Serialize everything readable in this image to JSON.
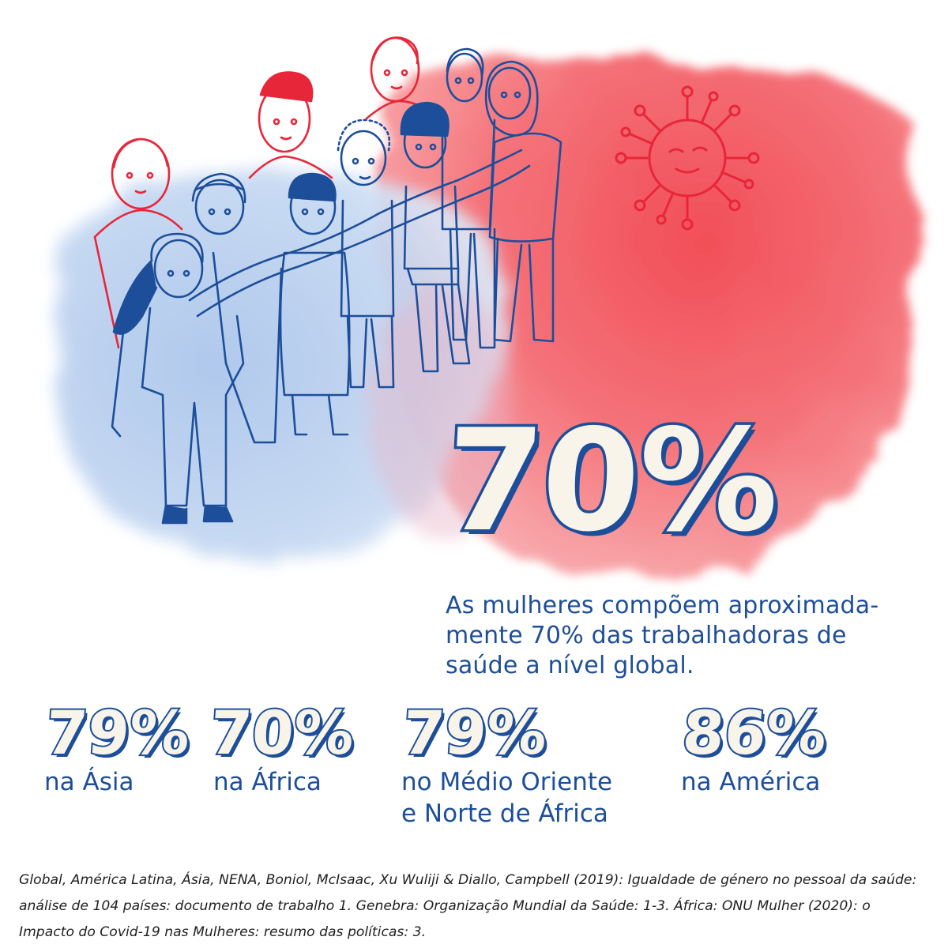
{
  "hero": {
    "value": "70%",
    "text": "As mulheres compõem aproximada-\nmente 70% das trabalhadoras de\nsaúde a nível global."
  },
  "stats": [
    {
      "value": "79%",
      "label": "na Ásia"
    },
    {
      "value": "70%",
      "label": "na África"
    },
    {
      "value": "79%",
      "label": "no Médio Oriente\ne Norte de África"
    },
    {
      "value": "86%",
      "label": "na América"
    }
  ],
  "footer": {
    "source": "Global, América Latina, Ásia, NENA, Boniol, McIsaac, Xu Wuliji & Diallo, Campbell (2019): Igualdade de género no pessoal da saúde: análise de 104 países: documento de trabalho 1. Genebra: Organização Mundial da Saúde: 1-3. África: ONU Mulher (2020): o Impacto do Covid-19 nas Mulheres: resumo das políticas: 3."
  },
  "colors": {
    "blue": "#1d4e9a",
    "red": "#e8263a",
    "paper": "#ffffff",
    "coral_wash": "#f25a63",
    "blue_wash": "#b8d0ee"
  },
  "icons": {
    "illustration": "group-of-health-workers-illustration",
    "virus": "virus-icon"
  }
}
